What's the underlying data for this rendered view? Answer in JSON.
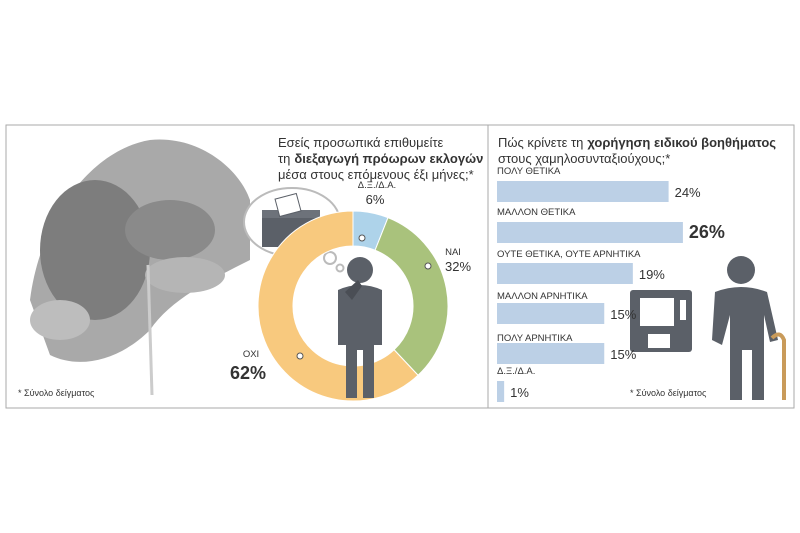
{
  "chart_data": [
    {
      "type": "pie",
      "title": [
        "Εσείς προσωπικά επιθυμείτε",
        "τη",
        "διεξαγωγή πρόωρων εκλογών",
        "μέσα στους επόμενους έξι μήνες;*"
      ],
      "categories": [
        "Δ.Ξ./Δ.Α.",
        "ΝΑΙ",
        "ΟΧΙ"
      ],
      "values": [
        6,
        32,
        62
      ],
      "value_labels": [
        "6%",
        "32%",
        "62%"
      ],
      "colors": [
        "#aed3ea",
        "#a9c27c",
        "#f8c97e"
      ],
      "note": "* Σύνολο δείγματος"
    },
    {
      "type": "bar",
      "title": [
        "Πώς κρίνετε τη",
        "χορήγηση ειδικού βοηθήματος",
        "στους χαμηλοσυνταξιούχους;*"
      ],
      "categories": [
        "ΠΟΛΥ ΘΕΤΙΚΑ",
        "ΜΑΛΛΟΝ ΘΕΤΙΚΑ",
        "ΟΥΤΕ ΘΕΤΙΚΑ, ΟΥΤΕ ΑΡΝΗΤΙΚΑ",
        "ΜΑΛΛΟΝ ΑΡΝΗΤΙΚΑ",
        "ΠΟΛΥ ΑΡΝΗΤΙΚΑ",
        "Δ.Ξ./Δ.Α."
      ],
      "values": [
        24,
        26,
        19,
        15,
        15,
        1
      ],
      "value_labels": [
        "24%",
        "26%",
        "19%",
        "15%",
        "15%",
        "1%"
      ],
      "color": "#bcd0e6",
      "note": "* Σύνολο δείγματος"
    }
  ]
}
